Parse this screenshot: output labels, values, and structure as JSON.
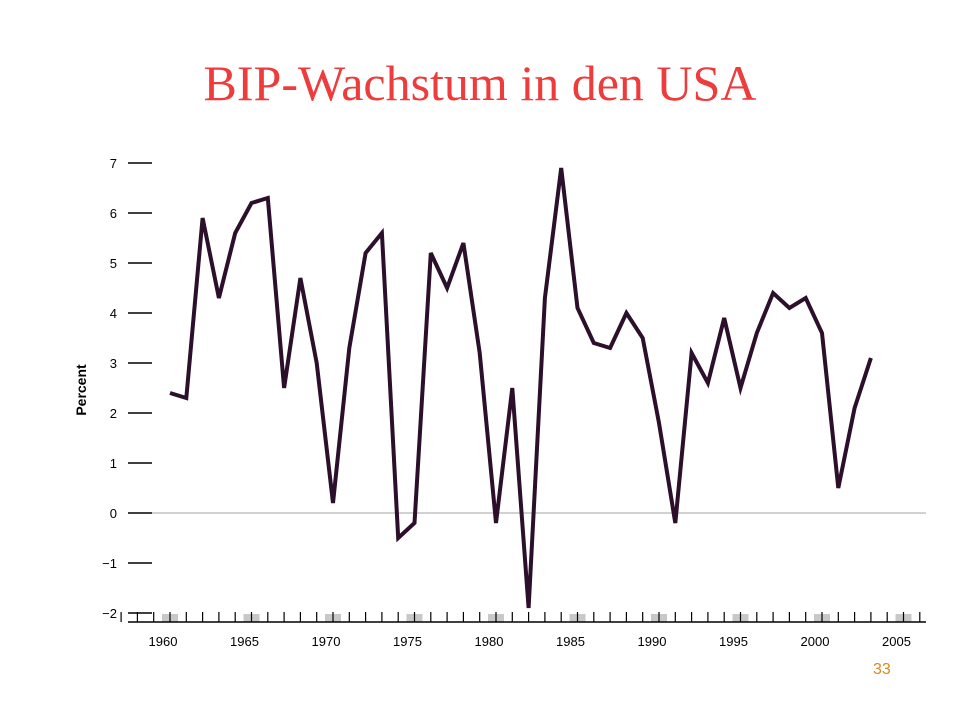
{
  "slide": {
    "title": "BIP-Wachstum in den USA",
    "page_number": "33"
  },
  "colors": {
    "title": "#ee3b3b",
    "line": "#2b0f2b",
    "zero_line": "#a6a6a6",
    "recession_shade": "#c8c8c8",
    "page_number": "#d98a1a"
  },
  "chart_data": {
    "type": "line",
    "title": "",
    "xlabel": "",
    "ylabel": "Percent",
    "xlim": [
      1957,
      2006
    ],
    "ylim": [
      -2,
      7
    ],
    "grid": false,
    "legend": "none",
    "x_ticks": [
      1960,
      1965,
      1970,
      1975,
      1980,
      1985,
      1990,
      1995,
      2000,
      2005
    ],
    "y_ticks": [
      7,
      6,
      5,
      4,
      3,
      2,
      1,
      0,
      -1,
      -2
    ],
    "y_tick_labels": [
      "7",
      "6",
      "5",
      "4",
      "3",
      "2",
      "1",
      "0",
      "−1",
      "−2"
    ],
    "shaded_periods": [
      1960,
      1965,
      1970,
      1975,
      1980,
      1985,
      1990,
      1995,
      2000,
      2005
    ],
    "series": [
      {
        "x": [
          1960,
          1961,
          1962,
          1963,
          1964,
          1965,
          1966,
          1967,
          1968,
          1969,
          1970,
          1971,
          1972,
          1973,
          1974,
          1975,
          1976,
          1977,
          1978,
          1979,
          1980,
          1981,
          1982,
          1983,
          1984,
          1985,
          1986,
          1987,
          1988,
          1989,
          1990,
          1991,
          1992,
          1993,
          1994,
          1995,
          1996,
          1997,
          1998,
          1999,
          2000,
          2001,
          2002,
          2003
        ],
        "values": [
          2.4,
          2.3,
          5.9,
          4.3,
          5.6,
          6.2,
          6.3,
          2.5,
          4.7,
          3.0,
          0.2,
          3.3,
          5.2,
          5.6,
          -0.5,
          -0.2,
          5.2,
          4.5,
          5.4,
          3.2,
          -0.2,
          2.5,
          -1.9,
          4.3,
          6.9,
          4.1,
          3.4,
          3.3,
          4.0,
          3.5,
          1.8,
          -0.2,
          3.2,
          2.6,
          3.9,
          2.5,
          3.6,
          4.4,
          4.1,
          4.3,
          3.6,
          0.5,
          2.1,
          3.1
        ]
      }
    ]
  }
}
